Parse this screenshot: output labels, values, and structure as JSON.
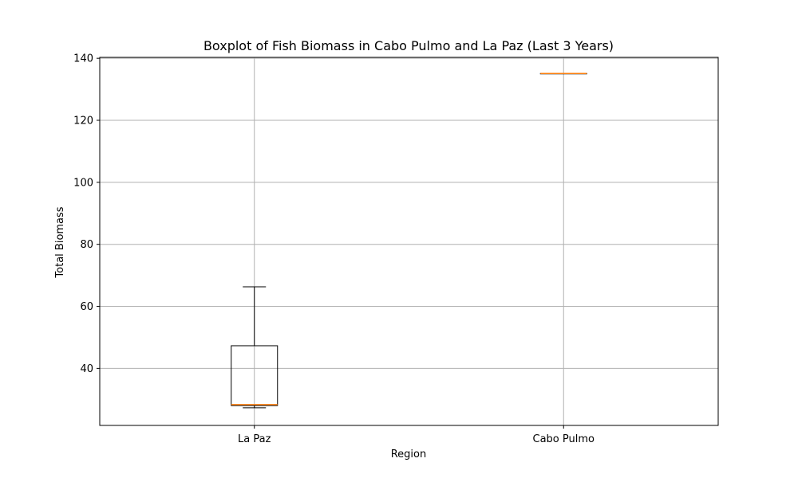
{
  "chart_data": {
    "type": "box",
    "title": "Boxplot of Fish Biomass in Cabo Pulmo and La Paz (Last 3 Years)",
    "xlabel": "Region",
    "ylabel": "Total Biomass",
    "categories": [
      "La Paz",
      "Cabo Pulmo"
    ],
    "boxes": [
      {
        "category": "La Paz",
        "whisker_low": 27.3,
        "q1": 28.0,
        "median": 28.3,
        "q3": 47.3,
        "whisker_high": 66.3
      },
      {
        "category": "Cabo Pulmo",
        "whisker_low": 135.1,
        "q1": 135.1,
        "median": 135.1,
        "q3": 135.1,
        "whisker_high": 135.1
      }
    ],
    "ylim": [
      21.6,
      140.3
    ],
    "yticks": [
      40,
      60,
      80,
      100,
      120,
      140
    ],
    "grid": true,
    "colors": {
      "box": "#000000",
      "median": "#ff7f0e",
      "grid": "#b0b0b0"
    }
  }
}
